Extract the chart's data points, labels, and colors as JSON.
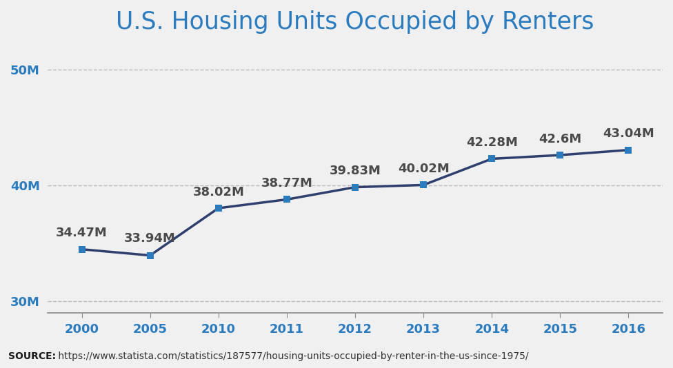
{
  "title": "U.S. Housing Units Occupied by Renters",
  "years": [
    2000,
    2005,
    2010,
    2011,
    2012,
    2013,
    2014,
    2015,
    2016
  ],
  "values": [
    34.47,
    33.94,
    38.02,
    38.77,
    39.83,
    40.02,
    42.28,
    42.6,
    43.04
  ],
  "labels": [
    "34.47M",
    "33.94M",
    "38.02M",
    "38.77M",
    "39.83M",
    "40.02M",
    "42.28M",
    "42.6M",
    "43.04M"
  ],
  "line_color": "#2e3f6e",
  "marker_color": "#2b7bbf",
  "title_color": "#2b7bbf",
  "label_color": "#4a4a4a",
  "ytick_color": "#2b7bbf",
  "xtick_color": "#2b7bbf",
  "bg_color": "#f0f0f0",
  "grid_color": "#bbbbbb",
  "ylim": [
    29,
    52
  ],
  "yticks": [
    30,
    40,
    50
  ],
  "ytick_labels": [
    "30M",
    "40M",
    "50M"
  ],
  "source_bold": "SOURCE:",
  "source_text": " https://www.statista.com/statistics/187577/housing-units-occupied-by-renter-in-the-us-since-1975/",
  "title_fontsize": 25,
  "label_fontsize": 13,
  "tick_fontsize": 13,
  "source_fontsize": 10,
  "label_offsets_y": [
    0.9,
    0.9,
    0.85,
    0.85,
    0.85,
    0.85,
    0.85,
    0.85,
    0.85
  ]
}
